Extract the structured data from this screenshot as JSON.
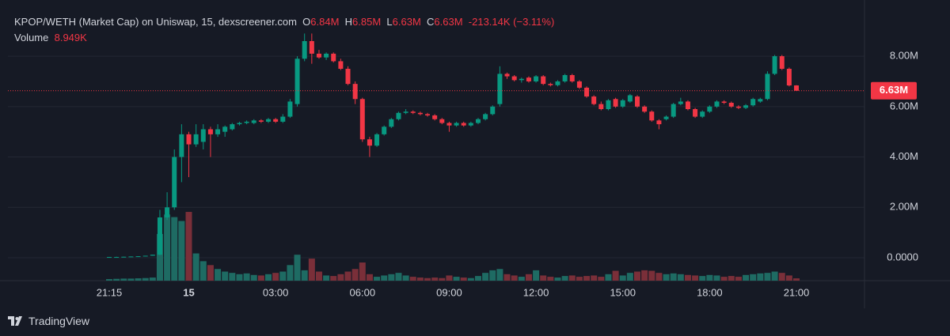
{
  "chart_data": {
    "type": "candlestick",
    "header": {
      "title": "KPOP/WETH (Market Cap) on Uniswap, 15, dexscreener.com",
      "ohlc": [
        {
          "key": "O",
          "value": "6.84M"
        },
        {
          "key": "H",
          "value": "6.85M"
        },
        {
          "key": "L",
          "value": "6.63M"
        },
        {
          "key": "C",
          "value": "6.63M"
        }
      ],
      "change": "-213.14K (−3.11%)",
      "volume_title": "Volume",
      "volume_value": "8.949K"
    },
    "categories": [
      "21:15",
      null,
      null,
      null,
      null,
      null,
      null,
      null,
      null,
      null,
      null,
      "15",
      null,
      null,
      null,
      null,
      null,
      null,
      null,
      null,
      null,
      null,
      null,
      "03:00",
      null,
      null,
      null,
      null,
      null,
      null,
      null,
      null,
      null,
      null,
      null,
      "06:00",
      null,
      null,
      null,
      null,
      null,
      null,
      null,
      null,
      null,
      null,
      null,
      "09:00",
      null,
      null,
      null,
      null,
      null,
      null,
      null,
      null,
      null,
      null,
      null,
      "12:00",
      null,
      null,
      null,
      null,
      null,
      null,
      null,
      null,
      null,
      null,
      null,
      "15:00",
      null,
      null,
      null,
      null,
      null,
      null,
      null,
      null,
      null,
      null,
      null,
      "18:00",
      null,
      null,
      null,
      null,
      null,
      null,
      null,
      null,
      null,
      null,
      null,
      "21:00"
    ],
    "open": [
      0.02,
      0.03,
      0.03,
      0.04,
      0.05,
      0.06,
      0.08,
      0.12,
      1.6,
      2.0,
      4.0,
      4.9,
      4.5,
      4.6,
      5.1,
      4.9,
      5.0,
      5.1,
      5.3,
      5.35,
      5.35,
      5.45,
      5.4,
      5.5,
      5.4,
      5.6,
      6.1,
      7.9,
      8.6,
      8.1,
      7.95,
      8.1,
      7.8,
      7.5,
      6.9,
      6.3,
      4.7,
      4.45,
      4.9,
      5.2,
      5.5,
      5.75,
      5.8,
      5.75,
      5.7,
      5.65,
      5.5,
      5.35,
      5.25,
      5.35,
      5.25,
      5.35,
      5.5,
      5.7,
      6.1,
      7.3,
      7.2,
      7.05,
      7.15,
      7.0,
      7.2,
      6.9,
      6.85,
      7.0,
      7.25,
      7.0,
      6.75,
      6.4,
      6.1,
      5.9,
      6.3,
      6.0,
      6.2,
      6.4,
      6.0,
      5.8,
      5.45,
      5.5,
      5.6,
      6.1,
      6.2,
      5.9,
      5.6,
      5.8,
      6.0,
      6.2,
      6.15,
      6.0,
      5.95,
      6.05,
      6.2,
      6.3,
      7.3,
      8.0,
      7.5,
      6.84
    ],
    "high": [
      0.03,
      0.04,
      0.04,
      0.05,
      0.06,
      0.08,
      0.12,
      1.9,
      2.6,
      4.3,
      5.3,
      5.0,
      5.3,
      5.3,
      5.2,
      5.3,
      5.25,
      5.35,
      5.4,
      5.45,
      5.5,
      5.5,
      5.55,
      5.55,
      5.7,
      6.3,
      8.0,
      8.9,
      8.9,
      8.25,
      8.15,
      8.15,
      7.9,
      7.6,
      7.0,
      6.35,
      4.8,
      4.95,
      5.25,
      5.55,
      5.8,
      5.9,
      5.85,
      5.8,
      5.75,
      5.7,
      5.55,
      5.4,
      5.4,
      5.4,
      5.4,
      5.55,
      5.75,
      6.05,
      7.6,
      7.35,
      7.25,
      7.15,
      7.2,
      7.25,
      7.25,
      6.95,
      7.05,
      7.3,
      7.3,
      7.05,
      6.8,
      6.45,
      6.2,
      6.3,
      6.35,
      6.3,
      6.5,
      6.45,
      6.05,
      5.85,
      5.5,
      5.65,
      6.15,
      6.35,
      6.25,
      5.95,
      5.85,
      6.05,
      6.25,
      6.25,
      6.2,
      6.05,
      6.1,
      6.35,
      6.35,
      7.4,
      8.05,
      8.05,
      7.55,
      6.85
    ],
    "low": [
      0.02,
      0.03,
      0.03,
      0.04,
      0.05,
      0.06,
      0.08,
      0.1,
      1.5,
      1.9,
      3.0,
      3.2,
      4.4,
      4.3,
      4.0,
      4.8,
      4.8,
      5.05,
      5.25,
      5.3,
      5.3,
      5.35,
      5.35,
      5.35,
      5.35,
      5.55,
      6.0,
      7.8,
      7.7,
      7.9,
      7.85,
      7.75,
      7.45,
      6.85,
      6.1,
      4.6,
      4.0,
      4.4,
      4.85,
      5.15,
      5.45,
      5.7,
      5.7,
      5.65,
      5.6,
      5.45,
      5.3,
      5.0,
      5.2,
      5.2,
      5.2,
      5.3,
      5.45,
      5.65,
      6.0,
      7.1,
      7.0,
      6.95,
      6.95,
      6.95,
      6.85,
      6.8,
      6.8,
      6.95,
      6.95,
      6.7,
      6.35,
      6.05,
      5.85,
      5.85,
      5.95,
      5.95,
      6.15,
      5.95,
      5.75,
      5.4,
      5.1,
      5.45,
      5.55,
      6.05,
      5.85,
      5.55,
      5.55,
      5.75,
      5.95,
      6.1,
      5.95,
      5.9,
      5.9,
      6.0,
      6.15,
      6.25,
      7.25,
      7.45,
      6.8,
      6.63
    ],
    "close": [
      0.03,
      0.03,
      0.04,
      0.05,
      0.06,
      0.08,
      0.12,
      1.6,
      2.0,
      4.0,
      4.9,
      4.5,
      4.9,
      5.1,
      4.9,
      5.1,
      5.2,
      5.3,
      5.35,
      5.4,
      5.45,
      5.4,
      5.5,
      5.4,
      5.6,
      6.2,
      7.9,
      8.6,
      8.1,
      7.95,
      8.1,
      7.8,
      7.5,
      6.9,
      6.3,
      4.7,
      4.45,
      4.9,
      5.2,
      5.5,
      5.75,
      5.8,
      5.75,
      5.7,
      5.65,
      5.5,
      5.35,
      5.25,
      5.35,
      5.25,
      5.35,
      5.5,
      5.7,
      6.0,
      7.3,
      7.2,
      7.05,
      7.1,
      7.0,
      7.2,
      6.9,
      6.85,
      7.0,
      7.25,
      7.0,
      6.75,
      6.4,
      6.1,
      5.9,
      6.25,
      6.0,
      6.25,
      6.45,
      6.0,
      5.8,
      5.45,
      5.3,
      5.6,
      6.1,
      6.2,
      5.9,
      5.6,
      5.8,
      6.0,
      6.2,
      6.15,
      6.0,
      5.95,
      6.05,
      6.3,
      6.3,
      7.3,
      8.0,
      7.5,
      6.84,
      6.63
    ],
    "volume": [
      6,
      7,
      8,
      8,
      9,
      10,
      12,
      180,
      255,
      245,
      230,
      265,
      105,
      75,
      60,
      45,
      35,
      30,
      25,
      28,
      22,
      20,
      25,
      30,
      35,
      60,
      100,
      40,
      85,
      35,
      20,
      18,
      25,
      35,
      45,
      70,
      25,
      15,
      20,
      25,
      30,
      20,
      15,
      12,
      10,
      12,
      10,
      20,
      15,
      12,
      10,
      18,
      30,
      40,
      45,
      25,
      20,
      15,
      25,
      40,
      20,
      15,
      12,
      18,
      20,
      15,
      18,
      20,
      15,
      25,
      38,
      20,
      30,
      35,
      40,
      38,
      30,
      25,
      28,
      25,
      22,
      20,
      18,
      22,
      20,
      15,
      18,
      15,
      22,
      25,
      28,
      30,
      35,
      30,
      20,
      8.949
    ],
    "ylim": [
      -0.91,
      9.98
    ],
    "yticks": [
      {
        "value": 0,
        "label": "0.0000"
      },
      {
        "value": 2,
        "label": "2.00M"
      },
      {
        "value": 4,
        "label": "4.00M"
      },
      {
        "value": 6,
        "label": "6.00M"
      },
      {
        "value": 8,
        "label": "8.00M"
      }
    ],
    "volume_ylim": [
      0,
      320
    ],
    "last_price": {
      "value": 6.63,
      "label": "6.63M"
    },
    "up_color": "#089981",
    "down_color": "#f23645",
    "volume_up_color": "#1e6b63",
    "volume_down_color": "#7a2f39",
    "grid": true
  },
  "footer": {
    "brand": "TradingView"
  }
}
